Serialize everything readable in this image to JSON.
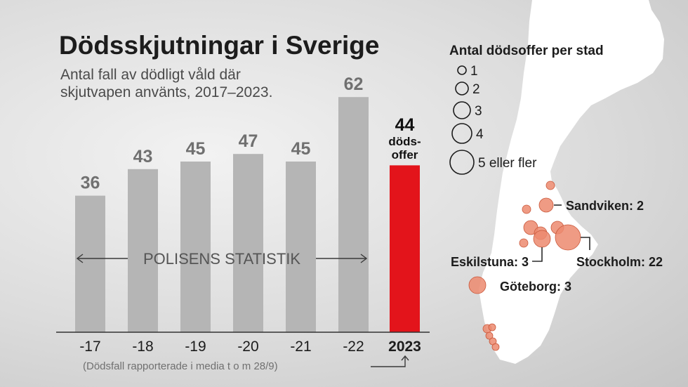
{
  "header": {
    "title": "Dödsskjutningar i Sverige",
    "subtitle_line1": "Antal fall av dödligt våld där",
    "subtitle_line2": "skjutvapen använts, 2017–2023."
  },
  "chart_data": {
    "type": "bar",
    "categories": [
      "-17",
      "-18",
      "-19",
      "-20",
      "-21",
      "-22",
      "2023"
    ],
    "values": [
      36,
      43,
      45,
      47,
      45,
      62,
      44
    ],
    "value_labels": [
      "36",
      "43",
      "45",
      "47",
      "45",
      "62",
      "44"
    ],
    "highlight_index": 6,
    "highlight_label_line1": "döds-",
    "highlight_label_line2": "offer",
    "span_label": "POLISENS STATISTIK",
    "footnote": "(Dödsfall rapporterade i media t o m 28/9)",
    "grid": false,
    "colors": {
      "bar": "#b5b5b5",
      "highlight": "#e3141b",
      "value_label": "#707070",
      "highlight_value_label": "#111111"
    }
  },
  "map": {
    "legend_title": "Antal dödsoffer per stad",
    "legend_items": [
      {
        "value": 1,
        "label": "1"
      },
      {
        "value": 2,
        "label": "2"
      },
      {
        "value": 3,
        "label": "3"
      },
      {
        "value": 4,
        "label": "4"
      },
      {
        "value": 5,
        "label": "5 eller fler"
      }
    ],
    "labeled_cities": [
      {
        "name": "Sandviken",
        "value": 2,
        "label": "Sandviken: 2"
      },
      {
        "name": "Eskilstuna",
        "value": 3,
        "label": "Eskilstuna: 3"
      },
      {
        "name": "Stockholm",
        "value": 22,
        "label": "Stockholm: 22"
      },
      {
        "name": "Göteborg",
        "value": 3,
        "label": "Göteborg: 3"
      }
    ],
    "colors": {
      "land": "#ffffff",
      "bubble": "#ec8a6e",
      "bubble_stroke": "#c9573a"
    }
  }
}
